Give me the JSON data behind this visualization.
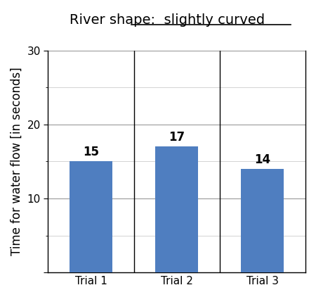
{
  "title_plain": "River shape:  ",
  "title_underlined": "slightly curved",
  "categories": [
    "Trial 1",
    "Trial 2",
    "Trial 3"
  ],
  "values": [
    15,
    17,
    14
  ],
  "bar_color": "#4F7EC0",
  "ylabel": "Time for water flow [in seconds]",
  "ylim": [
    0,
    30
  ],
  "yticks_major": [
    0,
    10,
    20,
    30
  ],
  "yticks_minor": [
    5,
    15,
    25
  ],
  "bar_width": 0.5,
  "tick_fontsize": 11,
  "ylabel_fontsize": 12,
  "value_label_fontsize": 12,
  "title_fontsize": 14,
  "major_grid_color": "#bbbbbb",
  "minor_grid_color": "#cccccc",
  "background_color": "#ffffff"
}
